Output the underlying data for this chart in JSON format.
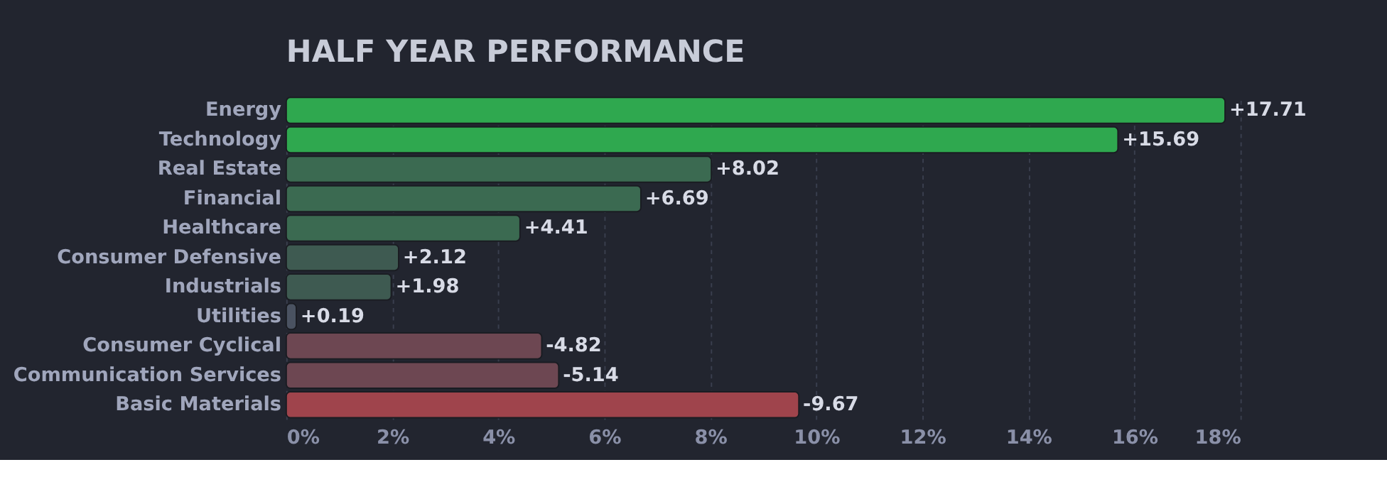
{
  "chart_data": {
    "type": "bar",
    "orientation": "horizontal",
    "title": "HALF YEAR PERFORMANCE",
    "categories": [
      "Energy",
      "Technology",
      "Real Estate",
      "Financial",
      "Healthcare",
      "Consumer Defensive",
      "Industrials",
      "Utilities",
      "Consumer Cyclical",
      "Communication Services",
      "Basic Materials"
    ],
    "values": [
      17.71,
      15.69,
      8.02,
      6.69,
      4.41,
      2.12,
      1.98,
      0.19,
      -4.82,
      -5.14,
      -9.67
    ],
    "base": [
      null,
      null,
      null,
      null,
      null,
      null,
      null,
      null,
      4.82,
      5.14,
      9.67
    ],
    "value_labels": [
      "+17.71",
      "+15.69",
      "+8.02",
      "+6.69",
      "+4.41",
      "+2.12",
      "+1.98",
      "+0.19",
      "-4.82",
      "-5.14",
      "-9.67"
    ],
    "colors": [
      "#2fa84f",
      "#2fa84f",
      "#3b6a51",
      "#3b6a51",
      "#3b6a51",
      "#3e5a51",
      "#3e5a51",
      "#4a5261",
      "#6d4752",
      "#6d4752",
      "#9f444c"
    ],
    "xlim": [
      0,
      18
    ],
    "xticks": [
      {
        "value": 0,
        "label": "0%"
      },
      {
        "value": 2,
        "label": "2%"
      },
      {
        "value": 4,
        "label": "4%"
      },
      {
        "value": 6,
        "label": "6%"
      },
      {
        "value": 8,
        "label": "8%"
      },
      {
        "value": 10,
        "label": "10%"
      },
      {
        "value": 12,
        "label": "12%"
      },
      {
        "value": 14,
        "label": "14%"
      },
      {
        "value": 16,
        "label": "16%"
      },
      {
        "value": 18,
        "label": "18%"
      }
    ],
    "grid": "x"
  }
}
